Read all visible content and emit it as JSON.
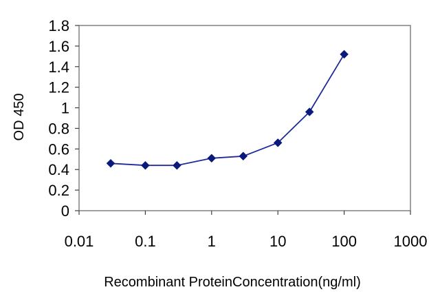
{
  "chart_data": {
    "type": "line",
    "title": "",
    "xlabel": "Recombinant ProteinConcentration(ng/ml)",
    "ylabel": "OD 450",
    "x_scale": "log",
    "xlim": [
      0.01,
      1000
    ],
    "ylim": [
      0,
      1.8
    ],
    "x_ticks": [
      "0.01",
      "0.1",
      "1",
      "10",
      "100",
      "1000"
    ],
    "y_ticks": [
      "0",
      "0.2",
      "0.4",
      "0.6",
      "0.8",
      "1",
      "1.2",
      "1.4",
      "1.6",
      "1.8"
    ],
    "grid": false,
    "legend": "none",
    "color": "#1f2a9a",
    "marker_color": "#0a1a7a",
    "marker": "diamond",
    "series": [
      {
        "x": [
          0.03,
          0.1,
          0.3,
          1,
          3,
          10,
          30,
          100
        ],
        "y": [
          0.46,
          0.44,
          0.44,
          0.51,
          0.53,
          0.66,
          0.96,
          1.52
        ]
      }
    ]
  }
}
